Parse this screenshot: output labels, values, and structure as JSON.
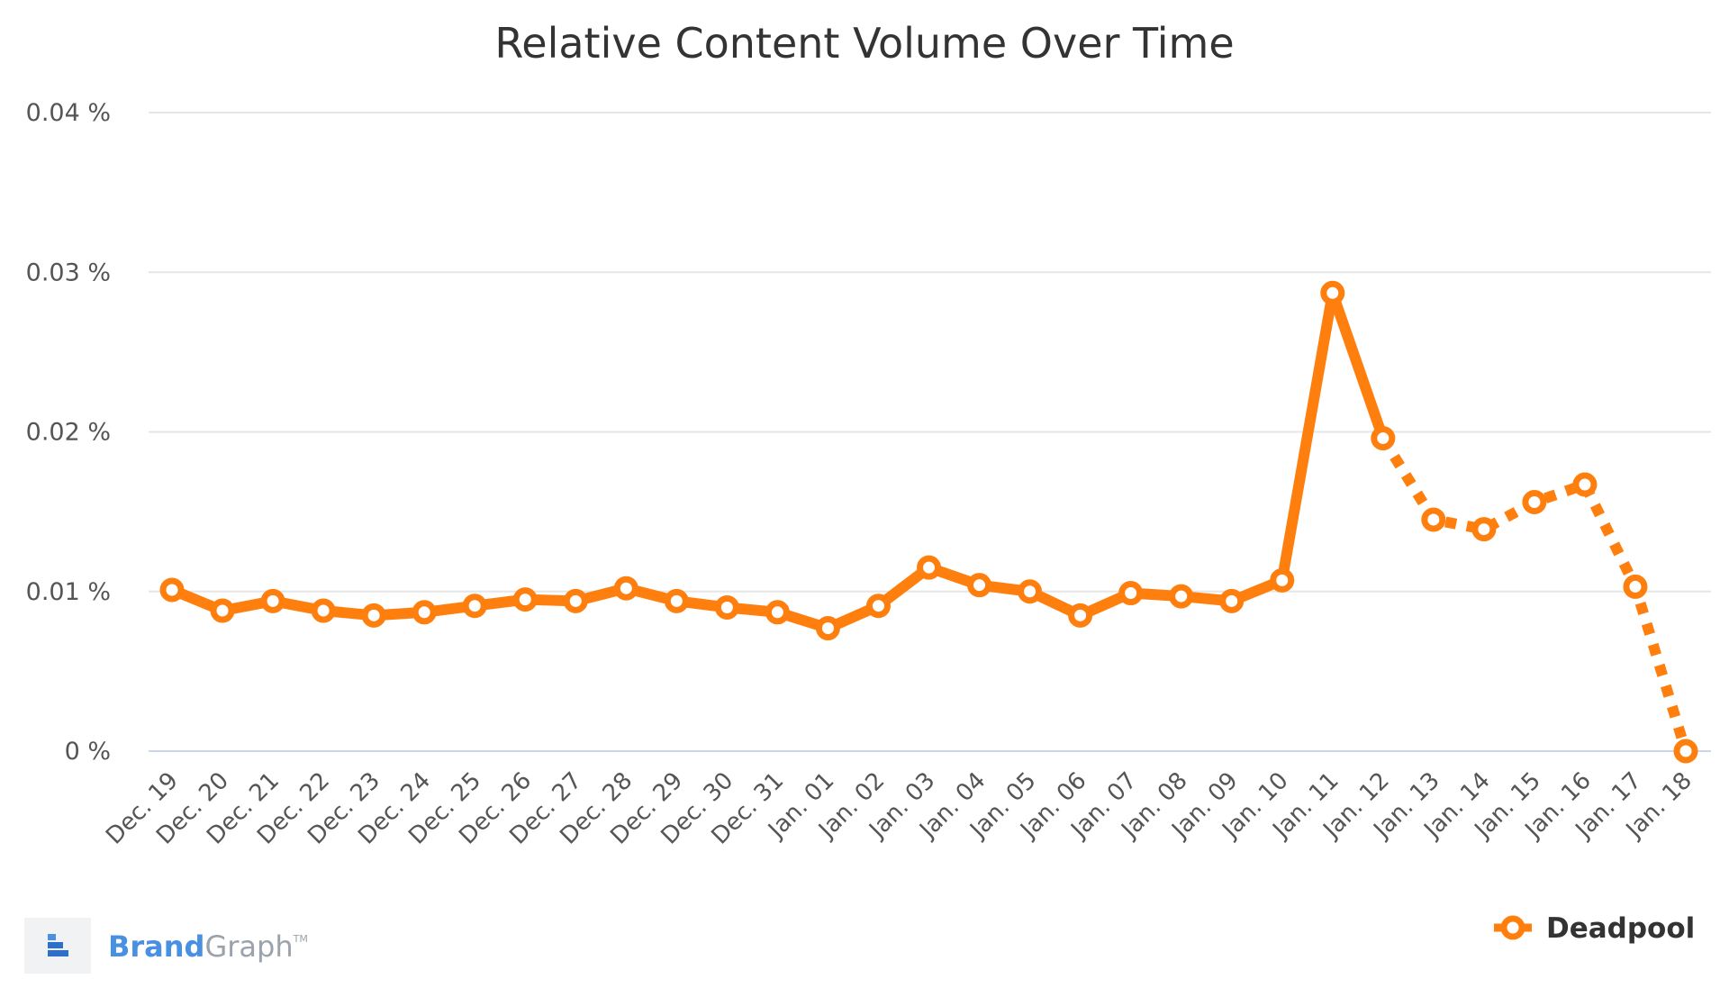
{
  "chart_data": {
    "type": "line",
    "title": "Relative Content Volume Over Time",
    "xlabel": "",
    "ylabel": "",
    "ylim": [
      0,
      0.04
    ],
    "y_ticks": [
      0,
      0.01,
      0.02,
      0.03,
      0.04
    ],
    "y_tick_labels": [
      "0 %",
      "0.01 %",
      "0.02 %",
      "0.03 %",
      "0.04 %"
    ],
    "grid": true,
    "legend_position": "bottom-right",
    "categories": [
      "Dec. 19",
      "Dec. 20",
      "Dec. 21",
      "Dec. 22",
      "Dec. 23",
      "Dec. 24",
      "Dec. 25",
      "Dec. 26",
      "Dec. 27",
      "Dec. 28",
      "Dec. 29",
      "Dec. 30",
      "Dec. 31",
      "Jan. 01",
      "Jan. 02",
      "Jan. 03",
      "Jan. 04",
      "Jan. 05",
      "Jan. 06",
      "Jan. 07",
      "Jan. 08",
      "Jan. 09",
      "Jan. 10",
      "Jan. 11",
      "Jan. 12",
      "Jan. 13",
      "Jan. 14",
      "Jan. 15",
      "Jan. 16",
      "Jan. 17",
      "Jan. 18"
    ],
    "series": [
      {
        "name": "Deadpool",
        "color": "#ff7f0e",
        "values": [
          0.0101,
          0.0088,
          0.0094,
          0.0088,
          0.0085,
          0.0087,
          0.0091,
          0.0095,
          0.0094,
          0.0102,
          0.0094,
          0.009,
          0.0087,
          0.0077,
          0.0091,
          0.0115,
          0.0104,
          0.01,
          0.0085,
          0.0099,
          0.0097,
          0.0094,
          0.0107,
          0.0287,
          0.0196,
          0.0145,
          0.0139,
          0.0156,
          0.0167,
          0.0103,
          0.0
        ],
        "dashed_from_index": 24
      }
    ]
  },
  "brand": {
    "name_part1": "Brand",
    "name_part2": "Graph",
    "trademark": "TM",
    "icon": "bar-stack-icon"
  }
}
